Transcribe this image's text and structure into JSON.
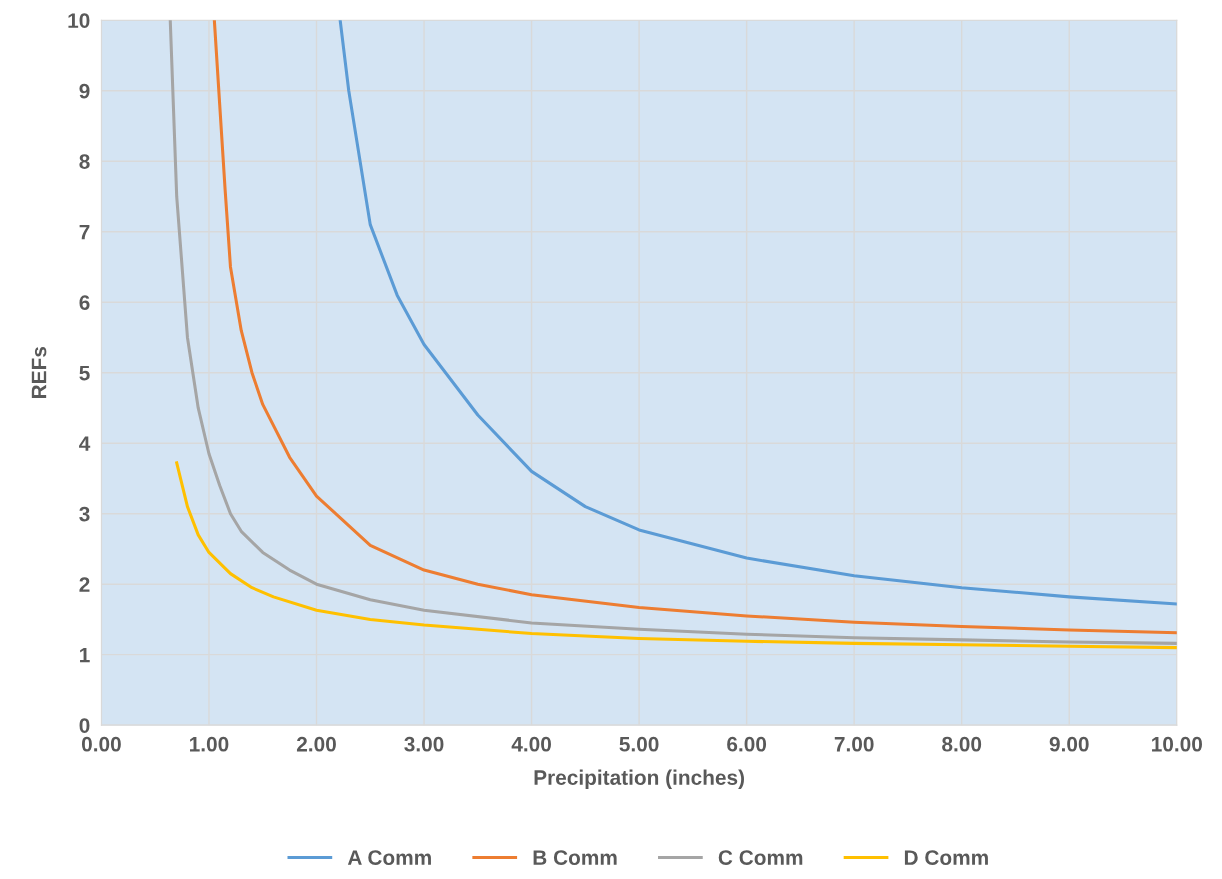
{
  "chart_data": {
    "type": "line",
    "xlabel": "Precipitation (inches)",
    "ylabel": "REFs",
    "xlim": [
      0,
      10
    ],
    "ylim": [
      0,
      10
    ],
    "xticks": [
      {
        "value": 0,
        "label": "0.00"
      },
      {
        "value": 1,
        "label": "1.00"
      },
      {
        "value": 2,
        "label": "2.00"
      },
      {
        "value": 3,
        "label": "3.00"
      },
      {
        "value": 4,
        "label": "4.00"
      },
      {
        "value": 5,
        "label": "5.00"
      },
      {
        "value": 6,
        "label": "6.00"
      },
      {
        "value": 7,
        "label": "7.00"
      },
      {
        "value": 8,
        "label": "8.00"
      },
      {
        "value": 9,
        "label": "9.00"
      },
      {
        "value": 10,
        "label": "10.00"
      }
    ],
    "yticks": [
      0,
      1,
      2,
      3,
      4,
      5,
      6,
      7,
      8,
      9,
      10
    ],
    "grid": true,
    "legend": "bottom",
    "marker": "none",
    "line_style": "solid",
    "series": [
      {
        "name": "A Comm",
        "color": "#5b9bd5",
        "x": [
          2.22,
          2.3,
          2.5,
          2.75,
          3,
          3.5,
          4,
          4.5,
          5,
          6,
          7,
          8,
          9,
          10
        ],
        "values": [
          10,
          9.0,
          7.1,
          6.1,
          5.4,
          4.4,
          3.6,
          3.1,
          2.77,
          2.37,
          2.12,
          1.95,
          1.82,
          1.72
        ]
      },
      {
        "name": "B Comm",
        "color": "#ed7d31",
        "x": [
          1.05,
          1.1,
          1.15,
          1.2,
          1.3,
          1.4,
          1.5,
          1.75,
          2,
          2.5,
          3,
          3.5,
          4,
          5,
          6,
          7,
          8,
          9,
          10
        ],
        "values": [
          10,
          8.8,
          7.6,
          6.5,
          5.6,
          5.0,
          4.55,
          3.8,
          3.25,
          2.55,
          2.2,
          2.0,
          1.85,
          1.67,
          1.55,
          1.46,
          1.4,
          1.35,
          1.31
        ]
      },
      {
        "name": "C Comm",
        "color": "#a5a5a5",
        "x": [
          0.64,
          0.7,
          0.8,
          0.9,
          1.0,
          1.1,
          1.2,
          1.3,
          1.5,
          1.75,
          2,
          2.5,
          3,
          4,
          5,
          6,
          7,
          8,
          9,
          10
        ],
        "values": [
          10,
          7.5,
          5.5,
          4.5,
          3.85,
          3.4,
          3.0,
          2.75,
          2.45,
          2.2,
          2.0,
          1.78,
          1.63,
          1.45,
          1.36,
          1.29,
          1.24,
          1.21,
          1.18,
          1.16
        ]
      },
      {
        "name": "D Comm",
        "color": "#ffc000",
        "x": [
          0.7,
          0.8,
          0.9,
          1.0,
          1.2,
          1.4,
          1.6,
          2,
          2.5,
          3,
          4,
          5,
          6,
          7,
          8,
          9,
          10
        ],
        "values": [
          3.72,
          3.1,
          2.7,
          2.45,
          2.15,
          1.95,
          1.82,
          1.63,
          1.5,
          1.42,
          1.3,
          1.23,
          1.19,
          1.16,
          1.14,
          1.12,
          1.1
        ]
      }
    ]
  }
}
